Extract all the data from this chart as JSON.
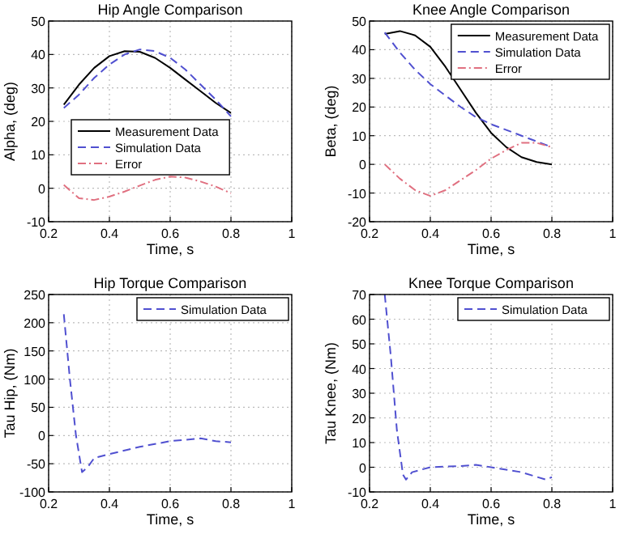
{
  "chart_data": [
    {
      "type": "line",
      "title": "Hip Angle Comparison",
      "xlabel": "Time, s",
      "ylabel": "Alpha, (deg)",
      "xlim": [
        0.2,
        1
      ],
      "xticks": [
        0.2,
        0.4,
        0.6,
        0.8,
        1
      ],
      "ylim": [
        -10,
        50
      ],
      "yticks": [
        -10,
        0,
        10,
        20,
        30,
        40,
        50
      ],
      "grid": true,
      "legend": "center left",
      "x": [
        0.25,
        0.3,
        0.35,
        0.4,
        0.45,
        0.5,
        0.55,
        0.6,
        0.65,
        0.7,
        0.75,
        0.8
      ],
      "series": [
        {
          "name": "Measurement Data",
          "color": "#000000",
          "line_style": "solid",
          "values": [
            25,
            31,
            36,
            39.5,
            41,
            40.8,
            39,
            36,
            32.5,
            29,
            25.5,
            22.5
          ]
        },
        {
          "name": "Simulation Data",
          "color": "#5050d0",
          "line_style": "dashed",
          "values": [
            24,
            28,
            33,
            37,
            40,
            41.5,
            41,
            39,
            35.5,
            31,
            26.5,
            21.5
          ]
        },
        {
          "name": "Error",
          "color": "#e07080",
          "line_style": "dashdot",
          "values": [
            1,
            -3,
            -3.5,
            -2.5,
            -1,
            0.8,
            2.5,
            3.5,
            3.2,
            2,
            0.5,
            -1.5
          ]
        }
      ]
    },
    {
      "type": "line",
      "title": "Knee Angle Comparison",
      "xlabel": "Time, s",
      "ylabel": "Beta, (deg)",
      "xlim": [
        0.2,
        1
      ],
      "xticks": [
        0.2,
        0.4,
        0.6,
        0.8,
        1
      ],
      "ylim": [
        -20,
        50
      ],
      "yticks": [
        -20,
        -10,
        0,
        10,
        20,
        30,
        40,
        50
      ],
      "grid": true,
      "legend": "top right",
      "x": [
        0.25,
        0.3,
        0.35,
        0.4,
        0.45,
        0.5,
        0.55,
        0.6,
        0.65,
        0.7,
        0.75,
        0.8
      ],
      "series": [
        {
          "name": "Measurement Data",
          "color": "#000000",
          "line_style": "solid",
          "values": [
            45.5,
            46.5,
            45,
            41,
            34,
            26,
            18,
            11,
            6,
            2.5,
            0.8,
            0
          ]
        },
        {
          "name": "Simulation Data",
          "color": "#5050d0",
          "line_style": "dashed",
          "values": [
            46,
            39,
            33,
            28,
            24,
            20,
            16.5,
            14,
            12,
            10,
            8,
            6
          ]
        },
        {
          "name": "Error",
          "color": "#e07080",
          "line_style": "dashdot",
          "values": [
            0,
            -5,
            -9,
            -11,
            -9,
            -5.5,
            -2,
            2,
            5,
            7.5,
            7.5,
            6
          ]
        }
      ]
    },
    {
      "type": "line",
      "title": "Hip Torque Comparison",
      "xlabel": "Time, s",
      "ylabel": "Tau Hip, (Nm)",
      "xlim": [
        0.2,
        1
      ],
      "xticks": [
        0.2,
        0.4,
        0.6,
        0.8,
        1
      ],
      "ylim": [
        -100,
        250
      ],
      "yticks": [
        -100,
        -50,
        0,
        50,
        100,
        150,
        200,
        250
      ],
      "grid": true,
      "legend": "top right",
      "x": [
        0.25,
        0.27,
        0.29,
        0.31,
        0.33,
        0.35,
        0.4,
        0.5,
        0.6,
        0.7,
        0.75,
        0.8
      ],
      "series": [
        {
          "name": "Simulation Data",
          "color": "#5050d0",
          "line_style": "dashed",
          "values": [
            215,
            100,
            0,
            -65,
            -55,
            -40,
            -33,
            -20,
            -10,
            -5,
            -10,
            -12
          ]
        }
      ]
    },
    {
      "type": "line",
      "title": "Knee Torque Comparison",
      "xlabel": "Time, s",
      "ylabel": "Tau Knee, (Nm)",
      "xlim": [
        0.2,
        1
      ],
      "xticks": [
        0.2,
        0.4,
        0.6,
        0.8,
        1
      ],
      "ylim": [
        -10,
        70
      ],
      "yticks": [
        -10,
        0,
        10,
        20,
        30,
        40,
        50,
        60,
        70
      ],
      "grid": true,
      "legend": "top right",
      "x": [
        0.25,
        0.27,
        0.29,
        0.31,
        0.32,
        0.34,
        0.4,
        0.5,
        0.55,
        0.6,
        0.7,
        0.78,
        0.8
      ],
      "series": [
        {
          "name": "Simulation Data",
          "color": "#5050d0",
          "line_style": "dashed",
          "values": [
            70,
            45,
            15,
            -3,
            -5,
            -2,
            0,
            0.5,
            1,
            0,
            -2,
            -5,
            -4
          ]
        }
      ]
    }
  ]
}
